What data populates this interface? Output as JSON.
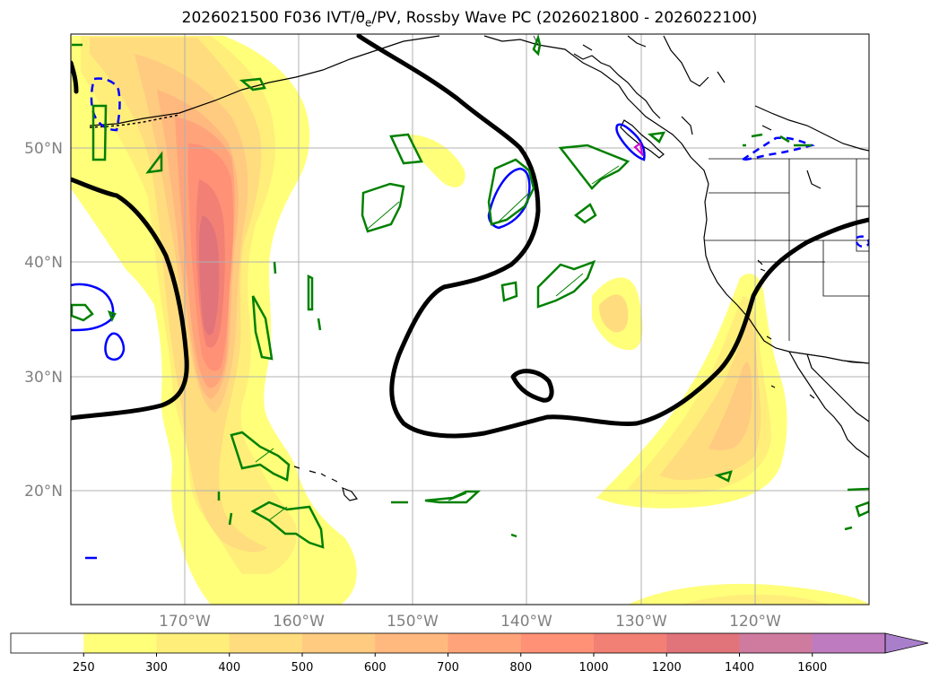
{
  "title": {
    "run": "2026021500 F036 IVT/",
    "theta": "θ",
    "theta_sub": "e",
    "rest": "/PV, Rossby Wave PC (2026021800 - 2026022100)"
  },
  "map_data": {
    "lon_range": [
      -180,
      -110
    ],
    "lat_range": [
      10,
      60
    ],
    "lon_ticks": [
      {
        "lon": -170,
        "label": "170°W"
      },
      {
        "lon": -160,
        "label": "160°W"
      },
      {
        "lon": -150,
        "label": "150°W"
      },
      {
        "lon": -140,
        "label": "140°W"
      },
      {
        "lon": -130,
        "label": "130°W"
      },
      {
        "lon": -120,
        "label": "120°W"
      }
    ],
    "lat_ticks": [
      {
        "lat": 20,
        "label": "20°N"
      },
      {
        "lat": 30,
        "label": "30°N"
      },
      {
        "lat": 40,
        "label": "40°N"
      },
      {
        "lat": 50,
        "label": "50°N"
      }
    ],
    "grid": true
  },
  "colorbar": {
    "levels": [
      "250",
      "300",
      "400",
      "500",
      "600",
      "700",
      "800",
      "1000",
      "1200",
      "1400",
      "1600"
    ],
    "colors": [
      "#ffff7a",
      "#ffef7a",
      "#ffdc7e",
      "#ffcb80",
      "#ffb97e",
      "#ffa47a",
      "#ff9176",
      "#f28075",
      "#e0747a",
      "#cf7ba0",
      "#bf7bc0",
      "#a97fcc"
    ],
    "extend": "max"
  },
  "colors": {
    "pv_line": "#008000",
    "wave_neg": "#0000ff",
    "wave_pos": "#000000",
    "coast": "#000000",
    "grid": "#b0b0b0"
  }
}
